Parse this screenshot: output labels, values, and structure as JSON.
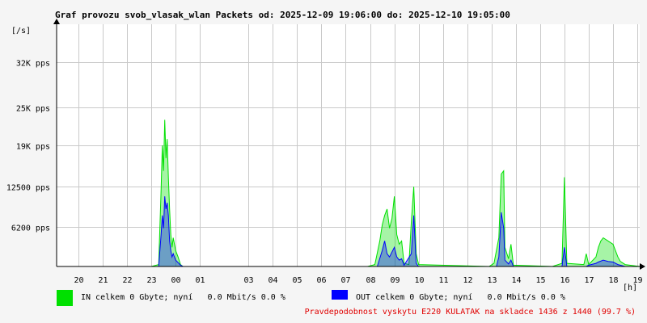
{
  "chart_data": {
    "type": "area",
    "title": "Graf provozu svob_vlasak_wlan Packets od: 2025-12-09 19:06:00 do: 2025-12-10 19:05:00",
    "ylabel": "[/s]",
    "xlabel": "[h]",
    "ylim": [
      0,
      38000
    ],
    "xlim": [
      19.1,
      43.1
    ],
    "y_ticks": [
      {
        "label": "6200 pps",
        "value": 6200
      },
      {
        "label": "12500 pps",
        "value": 12500
      },
      {
        "label": "19K pps",
        "value": 19000
      },
      {
        "label": "25K pps",
        "value": 25000
      },
      {
        "label": "32K pps",
        "value": 32000
      }
    ],
    "x_ticks": [
      {
        "label": "20",
        "value": 20
      },
      {
        "label": "21",
        "value": 21
      },
      {
        "label": "22",
        "value": 22
      },
      {
        "label": "23",
        "value": 23
      },
      {
        "label": "00",
        "value": 24
      },
      {
        "label": "01",
        "value": 25
      },
      {
        "label": "03",
        "value": 27
      },
      {
        "label": "04",
        "value": 28
      },
      {
        "label": "05",
        "value": 29
      },
      {
        "label": "06",
        "value": 30
      },
      {
        "label": "07",
        "value": 31
      },
      {
        "label": "08",
        "value": 32
      },
      {
        "label": "09",
        "value": 33
      },
      {
        "label": "10",
        "value": 34
      },
      {
        "label": "11",
        "value": 35
      },
      {
        "label": "12",
        "value": 36
      },
      {
        "label": "13",
        "value": 37
      },
      {
        "label": "14",
        "value": 38
      },
      {
        "label": "15",
        "value": 39
      },
      {
        "label": "16",
        "value": 40
      },
      {
        "label": "17",
        "value": 41
      },
      {
        "label": "18",
        "value": 42
      },
      {
        "label": "19",
        "value": 43
      }
    ],
    "grid": true,
    "series": [
      {
        "name": "IN",
        "color": "#00e000",
        "points": [
          [
            19.1,
            0
          ],
          [
            23.0,
            0
          ],
          [
            23.3,
            300
          ],
          [
            23.4,
            12000
          ],
          [
            23.45,
            19000
          ],
          [
            23.5,
            15000
          ],
          [
            23.55,
            23000
          ],
          [
            23.6,
            17000
          ],
          [
            23.65,
            20000
          ],
          [
            23.7,
            14000
          ],
          [
            23.75,
            9000
          ],
          [
            23.8,
            5000
          ],
          [
            23.85,
            3000
          ],
          [
            23.9,
            4500
          ],
          [
            24.0,
            2500
          ],
          [
            24.1,
            1500
          ],
          [
            24.2,
            300
          ],
          [
            24.3,
            0
          ],
          [
            31.9,
            0
          ],
          [
            32.2,
            300
          ],
          [
            32.4,
            4000
          ],
          [
            32.5,
            6500
          ],
          [
            32.6,
            8000
          ],
          [
            32.7,
            9000
          ],
          [
            32.8,
            6000
          ],
          [
            32.9,
            7500
          ],
          [
            33.0,
            11000
          ],
          [
            33.1,
            5000
          ],
          [
            33.2,
            3500
          ],
          [
            33.3,
            4000
          ],
          [
            33.4,
            500
          ],
          [
            33.6,
            300
          ],
          [
            33.7,
            7000
          ],
          [
            33.8,
            12500
          ],
          [
            33.9,
            2000
          ],
          [
            34.0,
            300
          ],
          [
            36.9,
            0
          ],
          [
            37.1,
            500
          ],
          [
            37.3,
            4500
          ],
          [
            37.4,
            14500
          ],
          [
            37.5,
            15000
          ],
          [
            37.55,
            3000
          ],
          [
            37.7,
            1200
          ],
          [
            37.8,
            3500
          ],
          [
            37.9,
            200
          ],
          [
            39.5,
            0
          ],
          [
            39.9,
            500
          ],
          [
            40.0,
            14000
          ],
          [
            40.1,
            500
          ],
          [
            40.8,
            300
          ],
          [
            40.9,
            2000
          ],
          [
            41.0,
            300
          ],
          [
            41.3,
            1500
          ],
          [
            41.4,
            3000
          ],
          [
            41.5,
            4000
          ],
          [
            41.6,
            4500
          ],
          [
            41.8,
            4000
          ],
          [
            42.0,
            3500
          ],
          [
            42.1,
            2500
          ],
          [
            42.2,
            1500
          ],
          [
            42.3,
            800
          ],
          [
            42.5,
            300
          ],
          [
            43.1,
            0
          ]
        ]
      },
      {
        "name": "OUT",
        "color": "#0000ff",
        "points": [
          [
            19.1,
            0
          ],
          [
            23.3,
            0
          ],
          [
            23.4,
            5000
          ],
          [
            23.45,
            8000
          ],
          [
            23.5,
            6000
          ],
          [
            23.55,
            11000
          ],
          [
            23.6,
            9000
          ],
          [
            23.65,
            10000
          ],
          [
            23.7,
            8000
          ],
          [
            23.75,
            4000
          ],
          [
            23.8,
            2500
          ],
          [
            23.85,
            1500
          ],
          [
            23.9,
            2000
          ],
          [
            24.0,
            1000
          ],
          [
            24.2,
            200
          ],
          [
            24.3,
            0
          ],
          [
            32.3,
            0
          ],
          [
            32.5,
            2500
          ],
          [
            32.6,
            4000
          ],
          [
            32.7,
            2000
          ],
          [
            32.8,
            1500
          ],
          [
            33.0,
            3000
          ],
          [
            33.1,
            1500
          ],
          [
            33.2,
            1000
          ],
          [
            33.3,
            1200
          ],
          [
            33.4,
            200
          ],
          [
            33.7,
            2000
          ],
          [
            33.8,
            8000
          ],
          [
            33.9,
            500
          ],
          [
            34.0,
            0
          ],
          [
            37.2,
            0
          ],
          [
            37.3,
            1500
          ],
          [
            37.4,
            8500
          ],
          [
            37.5,
            6000
          ],
          [
            37.55,
            1000
          ],
          [
            37.7,
            400
          ],
          [
            37.8,
            1000
          ],
          [
            37.9,
            0
          ],
          [
            39.9,
            0
          ],
          [
            40.0,
            3000
          ],
          [
            40.1,
            0
          ],
          [
            40.9,
            0
          ],
          [
            41.0,
            200
          ],
          [
            41.3,
            500
          ],
          [
            41.4,
            700
          ],
          [
            41.6,
            1000
          ],
          [
            41.8,
            800
          ],
          [
            42.0,
            700
          ],
          [
            42.2,
            300
          ],
          [
            42.5,
            0
          ],
          [
            43.1,
            0
          ]
        ]
      }
    ]
  },
  "legend": {
    "in": {
      "color": "#00e000",
      "text": "IN celkem 0 Gbyte; nyní   0.0 Mbit/s 0.0 %"
    },
    "out": {
      "color": "#0000ff",
      "text": "OUT celkem 0 Gbyte; nyní   0.0 Mbit/s 0.0 %"
    }
  },
  "footer_note": "Pravdepodobnost vyskytu E220 KULATAK na skladce 1436 z 1440 (99.7 %)"
}
